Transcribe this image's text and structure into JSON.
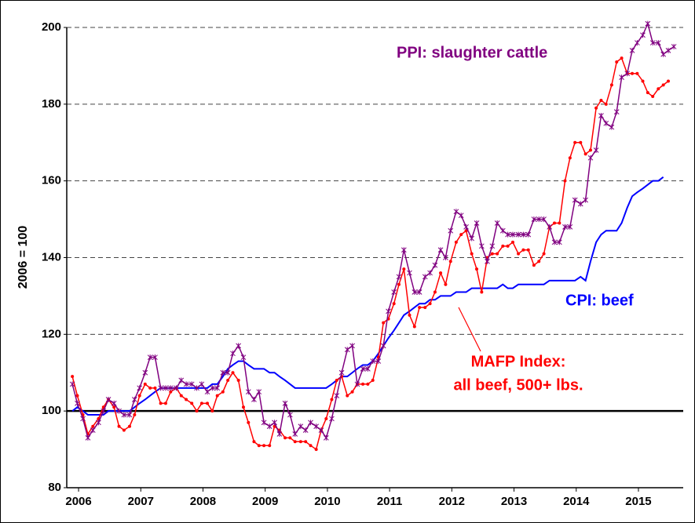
{
  "chart_data": {
    "type": "line",
    "ylabel": "2006 = 100",
    "annotations": [
      "PPI: slaughter cattle",
      "CPI: beef",
      "MAFP Index:",
      "all beef, 500+ lbs."
    ],
    "x": [
      2005.9,
      2005.98,
      2006.07,
      2006.15,
      2006.23,
      2006.32,
      2006.4,
      2006.48,
      2006.57,
      2006.65,
      2006.73,
      2006.82,
      2006.9,
      2006.98,
      2007.07,
      2007.15,
      2007.23,
      2007.32,
      2007.4,
      2007.48,
      2007.57,
      2007.65,
      2007.73,
      2007.82,
      2007.9,
      2007.98,
      2008.07,
      2008.15,
      2008.23,
      2008.32,
      2008.4,
      2008.48,
      2008.57,
      2008.65,
      2008.73,
      2008.82,
      2008.9,
      2008.98,
      2009.07,
      2009.15,
      2009.23,
      2009.32,
      2009.4,
      2009.48,
      2009.57,
      2009.65,
      2009.73,
      2009.82,
      2009.9,
      2009.98,
      2010.07,
      2010.15,
      2010.23,
      2010.32,
      2010.4,
      2010.48,
      2010.57,
      2010.65,
      2010.73,
      2010.82,
      2010.9,
      2010.98,
      2011.07,
      2011.15,
      2011.23,
      2011.32,
      2011.4,
      2011.48,
      2011.57,
      2011.65,
      2011.73,
      2011.82,
      2011.9,
      2011.98,
      2012.07,
      2012.15,
      2012.23,
      2012.32,
      2012.4,
      2012.48,
      2012.57,
      2012.65,
      2012.73,
      2012.82,
      2012.9,
      2012.98,
      2013.07,
      2013.15,
      2013.23,
      2013.32,
      2013.4,
      2013.48,
      2013.57,
      2013.65,
      2013.73,
      2013.82,
      2013.9,
      2013.98,
      2014.07,
      2014.15,
      2014.23,
      2014.32,
      2014.4,
      2014.48,
      2014.57,
      2014.65,
      2014.73,
      2014.82,
      2014.9,
      2014.98,
      2015.07,
      2015.15,
      2015.23,
      2015.32,
      2015.4,
      2015.48,
      2015.57
    ],
    "series": [
      {
        "color": "#800080",
        "marker": "star",
        "values": [
          107,
          102,
          98,
          93,
          95,
          97,
          100,
          103,
          102,
          100,
          99,
          99,
          103,
          106,
          110,
          114,
          114,
          106,
          106,
          106,
          106,
          108,
          107,
          107,
          106,
          107,
          105,
          106,
          106,
          110,
          110,
          115,
          117,
          114,
          105,
          103,
          105,
          97,
          96,
          97,
          94,
          102,
          99,
          94,
          96,
          95,
          97,
          96,
          95,
          93,
          98,
          104,
          110,
          116,
          117,
          107,
          111,
          111,
          113,
          113,
          117,
          126,
          131,
          135,
          142,
          136,
          131,
          131,
          135,
          136,
          138,
          142,
          140,
          147,
          152,
          151,
          148,
          145,
          149,
          143,
          139,
          143,
          149,
          147,
          146,
          146,
          146,
          146,
          146,
          150,
          150,
          150,
          148,
          144,
          144,
          148,
          148,
          155,
          154,
          155,
          166,
          168,
          177,
          175,
          174,
          178,
          187,
          188,
          194,
          196,
          198,
          201,
          196,
          196,
          193,
          194,
          195
        ]
      },
      {
        "color": "#ff0000",
        "marker": "dot",
        "values": [
          109,
          104,
          99,
          94,
          96,
          98,
          101,
          103,
          101,
          96,
          95,
          96,
          99,
          104,
          107,
          106,
          106,
          102,
          102,
          105,
          106,
          104,
          103,
          102,
          100,
          102,
          102,
          100,
          104,
          105,
          108,
          110,
          108,
          101,
          97,
          92,
          91,
          91,
          91,
          96,
          95,
          93,
          93,
          92,
          92,
          92,
          91,
          90,
          95,
          98,
          103,
          108,
          109,
          104,
          105,
          107,
          107,
          107,
          108,
          114,
          123,
          124,
          128,
          133,
          137,
          125,
          122,
          127,
          127,
          128,
          131,
          136,
          133,
          139,
          144,
          146,
          147,
          141,
          137,
          131,
          140,
          141,
          141,
          143,
          143,
          144,
          141,
          142,
          142,
          138,
          139,
          141,
          148,
          149,
          149,
          160,
          166,
          170,
          170,
          167,
          168,
          179,
          181,
          180,
          185,
          191,
          192,
          188,
          188,
          188,
          186,
          183,
          182,
          184,
          185,
          186,
          null
        ]
      },
      {
        "color": "#0000ff",
        "marker": "none",
        "values": [
          100,
          101,
          100,
          99,
          99,
          99,
          99,
          100,
          100,
          100,
          100,
          100,
          101,
          102,
          103,
          104,
          105,
          106,
          106,
          106,
          106,
          106,
          106,
          106,
          106,
          106,
          106,
          107,
          107,
          109,
          111,
          112,
          113,
          113,
          112,
          111,
          111,
          111,
          110,
          110,
          109,
          108,
          107,
          106,
          106,
          106,
          106,
          106,
          106,
          106,
          107,
          108,
          109,
          109,
          110,
          111,
          112,
          112,
          113,
          115,
          117,
          119,
          121,
          123,
          125,
          126,
          127,
          128,
          128,
          129,
          129,
          130,
          130,
          130,
          131,
          131,
          131,
          132,
          132,
          132,
          132,
          132,
          132,
          133,
          132,
          132,
          133,
          133,
          133,
          133,
          133,
          133,
          134,
          134,
          134,
          134,
          134,
          134,
          135,
          134,
          139,
          144,
          146,
          147,
          147,
          147,
          149,
          153,
          156,
          157,
          158,
          159,
          160,
          160,
          161,
          null,
          null
        ]
      }
    ],
    "xlim": [
      2005.81,
      2015.72
    ],
    "xticks": [
      2006,
      2007,
      2008,
      2009,
      2010,
      2011,
      2012,
      2013,
      2014,
      2015
    ],
    "ylim": [
      80,
      200
    ],
    "yticks": [
      80,
      100,
      120,
      140,
      160,
      180,
      200
    ],
    "grid": "dashed",
    "reference_line": 100
  }
}
